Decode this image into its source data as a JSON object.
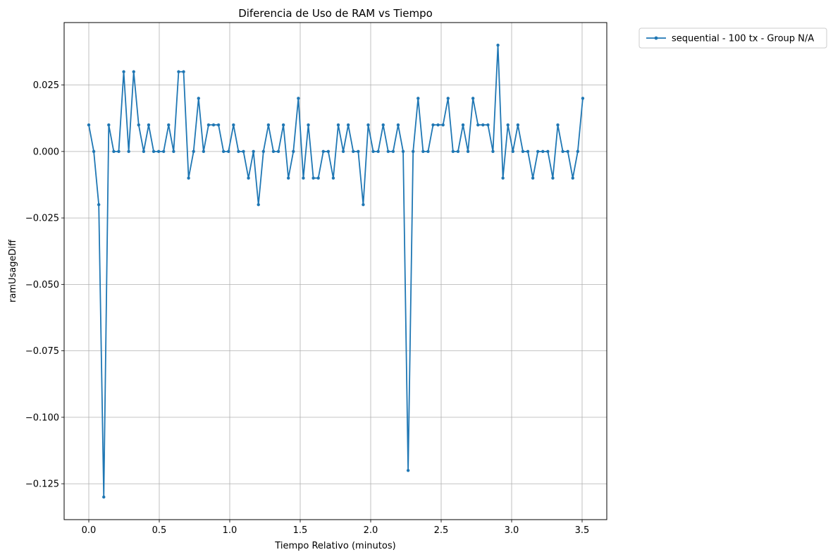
{
  "chart_data": {
    "type": "line",
    "title": "Diferencia de Uso de RAM vs Tiempo",
    "xlabel": "Tiempo Relativo (minutos)",
    "ylabel": "ramUsageDiff",
    "xlim": [
      -0.175,
      3.675
    ],
    "ylim": [
      -0.1385,
      0.0485
    ],
    "xticks": [
      0.0,
      0.5,
      1.0,
      1.5,
      2.0,
      2.5,
      3.0,
      3.5
    ],
    "xtick_labels": [
      "0.0",
      "0.5",
      "1.0",
      "1.5",
      "2.0",
      "2.5",
      "3.0",
      "3.5"
    ],
    "yticks": [
      -0.125,
      -0.1,
      -0.075,
      -0.05,
      -0.025,
      0.0,
      0.025
    ],
    "ytick_labels": [
      "−0.125",
      "−0.100",
      "−0.075",
      "−0.050",
      "−0.025",
      "0.000",
      "0.025"
    ],
    "grid": true,
    "legend_position": "outside-top-right",
    "x_step": 0.0354,
    "series": [
      {
        "name": "sequential - 100 tx - Group N/A",
        "color": "#1f77b4",
        "marker": "circle",
        "values": [
          0.01,
          0,
          -0.02,
          -0.13,
          0.01,
          0,
          0,
          0.03,
          0,
          0.03,
          0.01,
          0,
          0.01,
          0,
          0,
          0,
          0.01,
          0,
          0.03,
          0.03,
          -0.01,
          0,
          0.02,
          0,
          0.01,
          0.01,
          0.01,
          0,
          0,
          0.01,
          0,
          0,
          -0.01,
          0,
          -0.02,
          0,
          0.01,
          0,
          0,
          0.01,
          -0.01,
          0,
          0.02,
          -0.01,
          0.01,
          -0.01,
          -0.01,
          0,
          0,
          -0.01,
          0.01,
          0,
          0.01,
          0,
          0,
          -0.02,
          0.01,
          0,
          0,
          0.01,
          0,
          0,
          0.01,
          0,
          -0.12,
          0,
          0.02,
          0,
          0,
          0.01,
          0.01,
          0.01,
          0.02,
          0,
          0,
          0.01,
          0,
          0.02,
          0.01,
          0.01,
          0.01,
          0,
          0.04,
          -0.01,
          0.01,
          0,
          0.01,
          0,
          0,
          -0.01,
          0,
          0,
          0,
          -0.01,
          0.01,
          0,
          0,
          -0.01,
          0,
          0.02
        ]
      }
    ]
  }
}
